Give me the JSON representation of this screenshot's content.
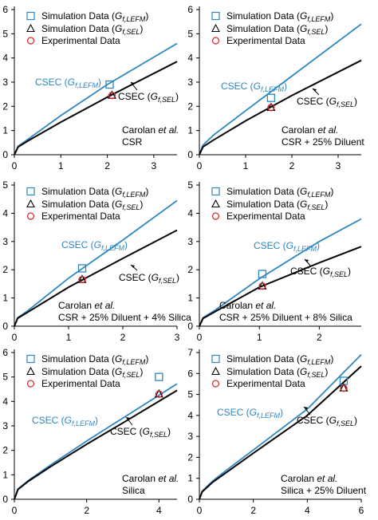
{
  "chart_data": [
    {
      "type": "line",
      "xlim": [
        0,
        3.5
      ],
      "ylim": [
        0,
        6
      ],
      "xticks": [
        "0",
        "1",
        "2",
        "3"
      ],
      "yticks": [
        "0",
        "1",
        "2",
        "3",
        "4",
        "5",
        "6"
      ],
      "legend": {
        "placement": "top-left",
        "entries": [
          "Simulation Data (G_f,LEFM)",
          "Simulation Data (G_f,SEL)",
          "Experimental Data"
        ]
      },
      "series": [
        {
          "name": "CSEC (G_f,LEFM)",
          "color": "#2e86c1",
          "x": [
            0,
            0.08,
            0.3,
            1,
            2,
            3.5
          ],
          "y": [
            0,
            0.35,
            0.65,
            1.62,
            2.9,
            4.6
          ]
        },
        {
          "name": "CSEC (G_f,SEL)",
          "color": "#000000",
          "x": [
            0,
            0.08,
            0.3,
            1,
            2,
            3.5
          ],
          "y": [
            0,
            0.32,
            0.58,
            1.35,
            2.38,
            3.85
          ]
        }
      ],
      "points": [
        {
          "series": "Simulation Data (G_f,LEFM)",
          "marker": "square",
          "x": 2.05,
          "y": 2.9
        },
        {
          "series": "Simulation Data (G_f,SEL)",
          "marker": "triangle",
          "x": 2.1,
          "y": 2.45
        },
        {
          "series": "Experimental Data",
          "marker": "circle",
          "x": 2.1,
          "y": 2.45
        }
      ],
      "labels": {
        "lefm": {
          "text": "CSEC (",
          "sub": "LEFM"
        },
        "sel": {
          "text": "CSEC (",
          "sub": "SEL"
        }
      },
      "annotation": [
        "Carolan",
        "et al.",
        "CSR"
      ]
    },
    {
      "type": "line",
      "xlim": [
        0,
        3.5
      ],
      "ylim": [
        0,
        6
      ],
      "xticks": [
        "0",
        "1",
        "2",
        "3"
      ],
      "yticks": [
        "0",
        "1",
        "2",
        "3",
        "4",
        "5",
        "6"
      ],
      "legend": {
        "placement": "top-left",
        "entries": [
          "Simulation Data (G_f,LEFM)",
          "Simulation Data (G_f,SEL)",
          "Experimental Data"
        ]
      },
      "series": [
        {
          "name": "CSEC (G_f,LEFM)",
          "color": "#2e86c1",
          "x": [
            0,
            0.08,
            0.3,
            1,
            2,
            3.5
          ],
          "y": [
            0,
            0.4,
            0.8,
            1.82,
            3.25,
            5.4
          ]
        },
        {
          "name": "CSEC (G_f,SEL)",
          "color": "#000000",
          "x": [
            0,
            0.08,
            0.3,
            1,
            2,
            3.5
          ],
          "y": [
            0,
            0.33,
            0.6,
            1.4,
            2.45,
            3.9
          ]
        }
      ],
      "points": [
        {
          "series": "Simulation Data (G_f,LEFM)",
          "marker": "square",
          "x": 1.55,
          "y": 2.35
        },
        {
          "series": "Simulation Data (G_f,SEL)",
          "marker": "triangle",
          "x": 1.55,
          "y": 1.95
        },
        {
          "series": "Experimental Data",
          "marker": "circle",
          "x": 1.55,
          "y": 1.95
        }
      ],
      "labels": {
        "lefm": {
          "text": "CSEC (",
          "sub": "LEFM"
        },
        "sel": {
          "text": "CSEC (",
          "sub": "SEL"
        }
      },
      "annotation": [
        "Carolan",
        "et al.",
        "CSR + 25% Diluent"
      ]
    },
    {
      "type": "line",
      "xlim": [
        0,
        3
      ],
      "ylim": [
        0,
        5
      ],
      "xticks": [
        "0",
        "1",
        "2",
        "3"
      ],
      "yticks": [
        "0",
        "1",
        "2",
        "3",
        "4",
        "5"
      ],
      "legend": {
        "placement": "top-left",
        "entries": [
          "Simulation Data (G_f,LEFM)",
          "Simulation Data (G_f,SEL)",
          "Experimental Data"
        ]
      },
      "series": [
        {
          "name": "CSEC (G_f,LEFM)",
          "color": "#2e86c1",
          "x": [
            0,
            0.06,
            0.25,
            1,
            2,
            3
          ],
          "y": [
            0,
            0.3,
            0.55,
            1.7,
            3.05,
            4.45
          ]
        },
        {
          "name": "CSEC (G_f,SEL)",
          "color": "#000000",
          "x": [
            0,
            0.06,
            0.25,
            1,
            2,
            3
          ],
          "y": [
            0,
            0.28,
            0.5,
            1.38,
            2.4,
            3.4
          ]
        }
      ],
      "points": [
        {
          "series": "Simulation Data (G_f,LEFM)",
          "marker": "square",
          "x": 1.25,
          "y": 2.05
        },
        {
          "series": "Simulation Data (G_f,SEL)",
          "marker": "triangle",
          "x": 1.25,
          "y": 1.65
        },
        {
          "series": "Experimental Data",
          "marker": "circle",
          "x": 1.25,
          "y": 1.65
        }
      ],
      "labels": {
        "lefm": {
          "text": "CSEC (",
          "sub": "LEFM"
        },
        "sel": {
          "text": "CSEC (",
          "sub": "SEL"
        }
      },
      "annotation": [
        "Carolan",
        "et al.",
        "CSR + 25% Diluent + 4% Silica"
      ]
    },
    {
      "type": "line",
      "xlim": [
        0,
        2.7
      ],
      "ylim": [
        0,
        5
      ],
      "xticks": [
        "0",
        "1",
        "2"
      ],
      "yticks": [
        "0",
        "1",
        "2",
        "3",
        "4",
        "5"
      ],
      "legend": {
        "placement": "top-left",
        "entries": [
          "Simulation Data (G_f,LEFM)",
          "Simulation Data (G_f,SEL)",
          "Experimental Data"
        ]
      },
      "series": [
        {
          "name": "CSEC (G_f,LEFM)",
          "color": "#2e86c1",
          "x": [
            0,
            0.06,
            0.25,
            1,
            2,
            2.7
          ],
          "y": [
            0,
            0.3,
            0.55,
            1.68,
            3,
            3.8
          ]
        },
        {
          "name": "CSEC (G_f,SEL)",
          "color": "#000000",
          "x": [
            0,
            0.06,
            0.25,
            1,
            2,
            2.7
          ],
          "y": [
            0,
            0.27,
            0.5,
            1.38,
            2.25,
            2.82
          ]
        }
      ],
      "points": [
        {
          "series": "Simulation Data (G_f,LEFM)",
          "marker": "square",
          "x": 1.05,
          "y": 1.85
        },
        {
          "series": "Simulation Data (G_f,SEL)",
          "marker": "triangle",
          "x": 1.05,
          "y": 1.42
        },
        {
          "series": "Experimental Data",
          "marker": "circle",
          "x": 1.05,
          "y": 1.42
        }
      ],
      "labels": {
        "lefm": {
          "text": "CSEC (",
          "sub": "LEFM"
        },
        "sel": {
          "text": "CSEC (",
          "sub": "SEL"
        }
      },
      "annotation": [
        "Carolan",
        "et al.",
        "CSR + 25% Diluent + 8% Silica"
      ]
    },
    {
      "type": "line",
      "xlim": [
        0,
        4.5
      ],
      "ylim": [
        0,
        6
      ],
      "xticks": [
        "0",
        "2",
        "4"
      ],
      "yticks": [
        "0",
        "1",
        "2",
        "3",
        "4",
        "5",
        "6"
      ],
      "legend": {
        "placement": "top-left",
        "entries": [
          "Simulation Data (G_f,LEFM)",
          "Simulation Data (G_f,SEL)",
          "Experimental Data"
        ]
      },
      "series": [
        {
          "name": "CSEC (G_f,LEFM)",
          "color": "#2e86c1",
          "x": [
            0,
            0.1,
            0.4,
            1,
            2,
            3,
            4.5
          ],
          "y": [
            0,
            0.42,
            0.78,
            1.4,
            2.38,
            3.32,
            4.72
          ]
        },
        {
          "name": "CSEC (G_f,SEL)",
          "color": "#000000",
          "x": [
            0,
            0.1,
            0.4,
            1,
            2,
            3,
            4.5
          ],
          "y": [
            0,
            0.4,
            0.75,
            1.33,
            2.25,
            3.12,
            4.45
          ]
        }
      ],
      "points": [
        {
          "series": "Simulation Data (G_f,LEFM)",
          "marker": "square",
          "x": 4.0,
          "y": 5.0
        },
        {
          "series": "Simulation Data (G_f,SEL)",
          "marker": "triangle",
          "x": 4.0,
          "y": 4.3
        },
        {
          "series": "Experimental Data",
          "marker": "circle",
          "x": 4.0,
          "y": 4.3
        }
      ],
      "labels": {
        "lefm": {
          "text": "CSEC (",
          "sub": "LEFM"
        },
        "sel": {
          "text": "CSEC (",
          "sub": "SEL"
        }
      },
      "annotation": [
        "Carolan",
        "et al.",
        "Silica"
      ]
    },
    {
      "type": "line",
      "xlim": [
        0,
        6
      ],
      "ylim": [
        0,
        7
      ],
      "xticks": [
        "0",
        "2",
        "4",
        "6"
      ],
      "yticks": [
        "0",
        "1",
        "2",
        "3",
        "4",
        "5",
        "6",
        "7"
      ],
      "legend": {
        "placement": "top-left",
        "entries": [
          "Simulation Data (G_f,LEFM)",
          "Simulation Data (G_f,SEL)",
          "Experimental Data"
        ]
      },
      "series": [
        {
          "name": "CSEC (G_f,LEFM)",
          "color": "#2e86c1",
          "x": [
            0,
            0.1,
            0.5,
            1,
            2,
            4,
            6
          ],
          "y": [
            0,
            0.38,
            0.88,
            1.38,
            2.35,
            4.3,
            6.9
          ]
        },
        {
          "name": "CSEC (G_f,SEL)",
          "color": "#000000",
          "x": [
            0,
            0.1,
            0.5,
            1,
            2,
            4,
            6
          ],
          "y": [
            0,
            0.35,
            0.82,
            1.28,
            2.2,
            4.0,
            6.35
          ]
        }
      ],
      "points": [
        {
          "series": "Simulation Data (G_f,LEFM)",
          "marker": "square",
          "x": 5.35,
          "y": 5.65
        },
        {
          "series": "Simulation Data (G_f,SEL)",
          "marker": "triangle",
          "x": 5.35,
          "y": 5.3
        },
        {
          "series": "Experimental Data",
          "marker": "circle",
          "x": 5.35,
          "y": 5.3
        }
      ],
      "labels": {
        "lefm": {
          "text": "CSEC (",
          "sub": "LEFM"
        },
        "sel": {
          "text": "CSEC (",
          "sub": "SEL"
        }
      },
      "annotation": [
        "Carolan",
        "et al.",
        "Silica + 25% Diluent"
      ]
    }
  ],
  "legend_text": {
    "sim_prefix": "Simulation Data (",
    "exp": "Experimental Data",
    "G": "G",
    "f": "f",
    "sub_lefm": ",LEFM",
    "sub_sel": ",SEL",
    "close": ")"
  },
  "colors": {
    "lefm": "#2e86c1",
    "sel": "#000000",
    "experimental": "#d62728",
    "axis": "#000000"
  }
}
